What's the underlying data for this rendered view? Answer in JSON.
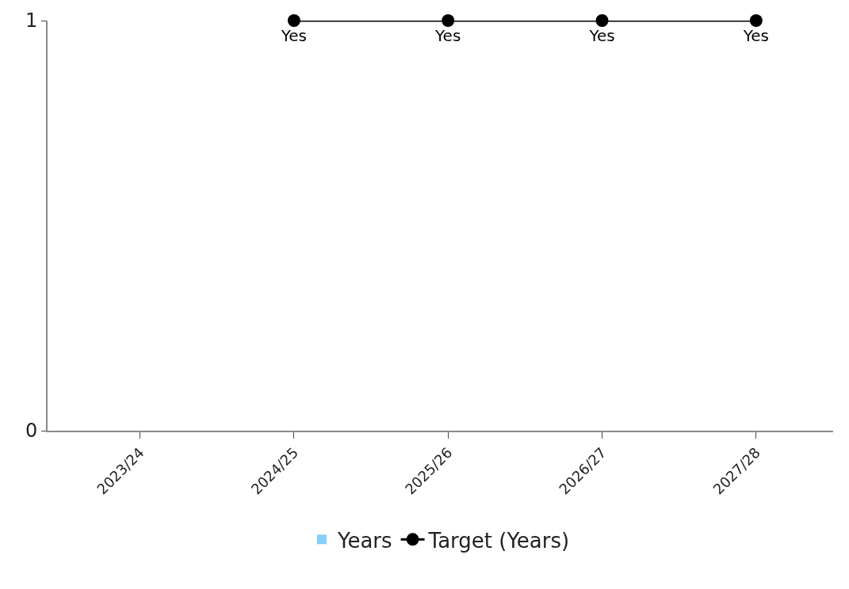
{
  "chart_data": {
    "type": "bar",
    "categories": [
      "2023/24",
      "2024/25",
      "2025/26",
      "2026/27",
      "2027/28"
    ],
    "series": [
      {
        "name": "Years",
        "color": "#87cefa",
        "values": [
          null,
          null,
          null,
          null,
          null
        ]
      },
      {
        "name": "Target (Years)",
        "type": "line",
        "color": "#000000",
        "values": [
          null,
          1,
          1,
          1,
          1
        ],
        "value_labels": [
          null,
          "Yes",
          "Yes",
          "Yes",
          "Yes"
        ],
        "marker": "circle",
        "line_style": "solid"
      }
    ],
    "ylim": [
      0,
      1
    ],
    "yticks": [
      0,
      1
    ],
    "grid": false,
    "legend": "bottom"
  }
}
